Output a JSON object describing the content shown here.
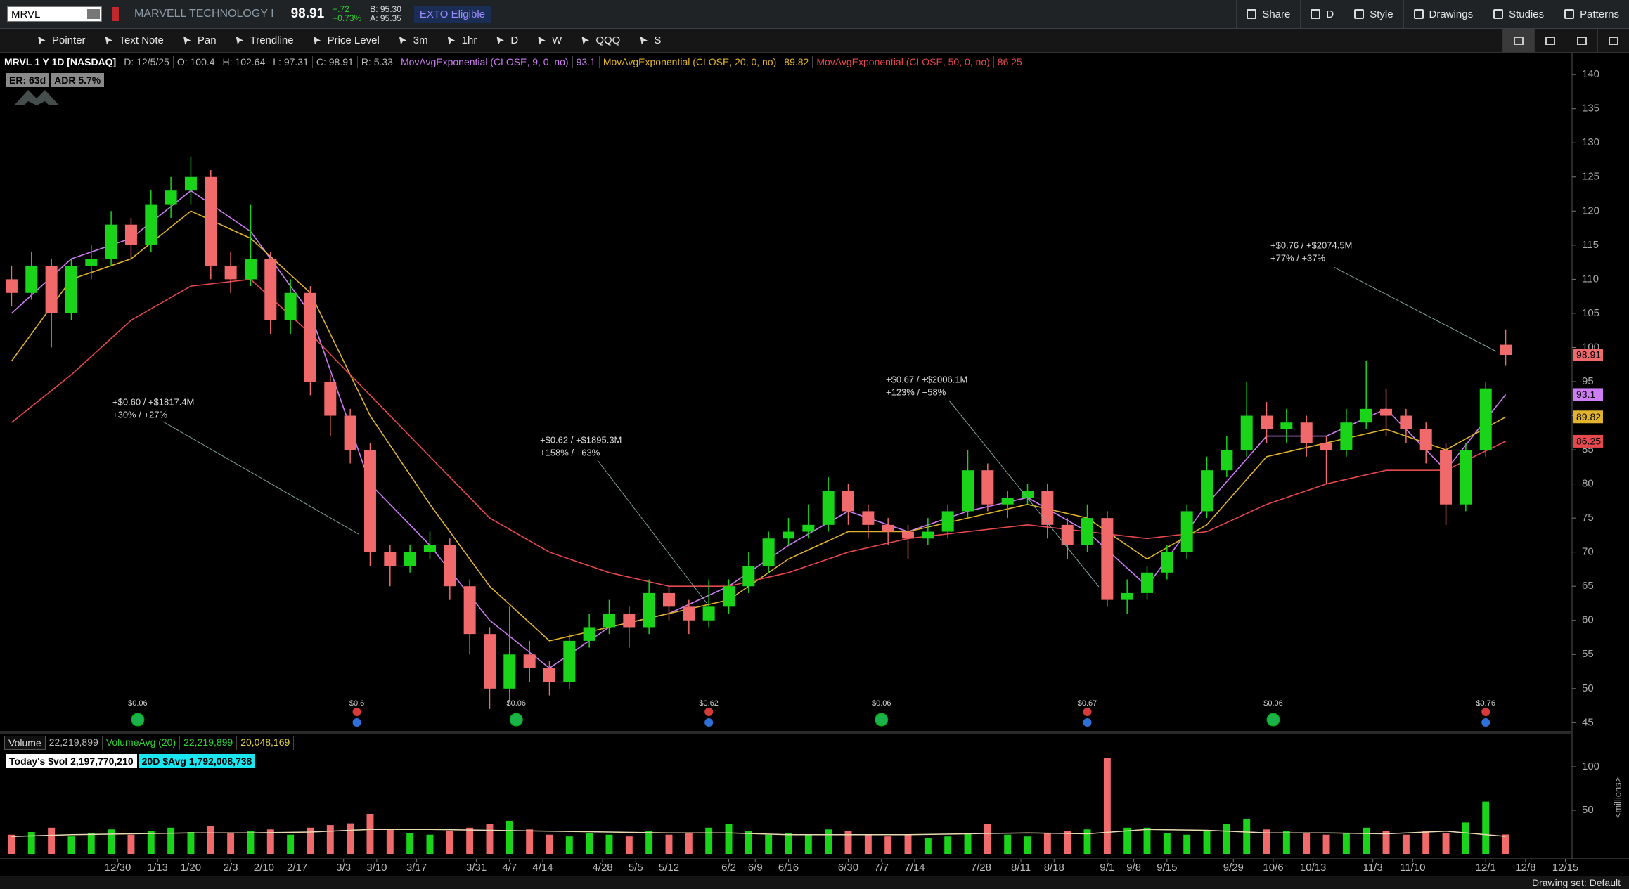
{
  "header": {
    "symbol": "MRVL",
    "company": "MARVELL TECHNOLOGY I",
    "last": 98.91,
    "change": "+.72",
    "change_pct": "+0.73%",
    "bid": "B: 95.30",
    "ask": "A: 95.35",
    "badge": "EXTO Eligible",
    "buttons": [
      "Share",
      "D",
      "Style",
      "Drawings",
      "Studies",
      "Patterns"
    ]
  },
  "toolbar": {
    "tools": [
      "Pointer",
      "Text Note",
      "Pan",
      "Trendline",
      "Price Level",
      "3m",
      "1hr",
      "D",
      "W",
      "QQQ",
      "S"
    ]
  },
  "info": {
    "title": "MRVL 1 Y 1D [NASDAQ]",
    "fields": [
      "D: 12/5/25",
      "O: 100.4",
      "H: 102.64",
      "L: 97.31",
      "C: 98.91",
      "R: 5.33"
    ],
    "badges": [
      "ER: 63d",
      "ADR 5.7%"
    ]
  },
  "chart_data": [
    {
      "type": "candlestick",
      "x": [
        0,
        3,
        6,
        9,
        12,
        15,
        18,
        21,
        24,
        27,
        30,
        33,
        36,
        39,
        42,
        45,
        48,
        51,
        54,
        57,
        60,
        63,
        66,
        69,
        72,
        75,
        78,
        81,
        84,
        87,
        90,
        93,
        96,
        99,
        102,
        105,
        108,
        111,
        114,
        117,
        120,
        123,
        126,
        129,
        132,
        135,
        138,
        141,
        144,
        147,
        150,
        153,
        156,
        159,
        162,
        165,
        168,
        171,
        174,
        177,
        180,
        183,
        186,
        189,
        192,
        195,
        198,
        201,
        204,
        207,
        210,
        213,
        216,
        219,
        222,
        225
      ],
      "open": [
        110,
        108,
        112,
        105,
        112,
        113,
        118,
        115,
        121,
        123,
        125,
        112,
        110,
        113,
        104,
        108,
        95,
        90,
        85,
        70,
        68,
        70,
        71,
        65,
        58,
        50,
        55,
        53,
        51,
        57,
        59,
        61,
        59,
        64,
        62,
        60,
        62,
        65,
        68,
        72,
        73,
        74,
        79,
        76,
        74,
        73,
        72,
        73,
        76,
        82,
        77,
        78,
        79,
        74,
        71,
        75,
        63,
        64,
        67,
        70,
        76,
        82,
        85,
        90,
        88,
        89,
        86,
        85,
        89,
        91,
        90,
        88,
        85,
        77,
        85,
        100.4
      ],
      "high": [
        112,
        114,
        113,
        113,
        115,
        120,
        119,
        123,
        125,
        128,
        126,
        114,
        121,
        114,
        110,
        109,
        96,
        91,
        86,
        71,
        71,
        73,
        72,
        66,
        59,
        62,
        57,
        54,
        58,
        61,
        63,
        62,
        66,
        65,
        63,
        66,
        66,
        70,
        73,
        75,
        77,
        81,
        80,
        77,
        75,
        74,
        75,
        77,
        85,
        83,
        79,
        80,
        80,
        75,
        77,
        76,
        66,
        68,
        71,
        77,
        84,
        87,
        95,
        92,
        91,
        90,
        87,
        91,
        98,
        94,
        91,
        89,
        86,
        86,
        95,
        102.64
      ],
      "low": [
        106,
        107,
        100,
        104,
        110,
        112,
        113,
        114,
        119,
        121,
        110,
        108,
        109,
        102,
        102,
        93,
        87,
        83,
        68,
        65,
        67,
        69,
        63,
        55,
        47,
        48,
        51,
        49,
        50,
        56,
        58,
        56,
        58,
        60,
        58,
        59,
        61,
        64,
        67,
        71,
        72,
        73,
        74,
        72,
        71,
        69,
        71,
        72,
        75,
        76,
        75,
        77,
        72,
        69,
        70,
        62,
        61,
        63,
        66,
        69,
        75,
        81,
        84,
        86,
        86,
        84,
        80,
        84,
        88,
        87,
        86,
        83,
        74,
        76,
        84,
        97.31
      ],
      "close": [
        108,
        112,
        105,
        112,
        113,
        118,
        115,
        121,
        123,
        125,
        112,
        110,
        113,
        104,
        108,
        95,
        90,
        85,
        70,
        68,
        70,
        71,
        65,
        58,
        50,
        55,
        53,
        51,
        57,
        59,
        61,
        59,
        64,
        62,
        60,
        62,
        65,
        68,
        72,
        73,
        74,
        79,
        76,
        74,
        73,
        72,
        73,
        76,
        82,
        77,
        78,
        79,
        74,
        71,
        75,
        63,
        64,
        67,
        70,
        76,
        82,
        85,
        90,
        88,
        89,
        86,
        85,
        89,
        91,
        90,
        88,
        85,
        77,
        85,
        94,
        98.91
      ],
      "up_color": "#19d419",
      "down_color": "#f0696b",
      "lines": [
        {
          "name": "MovAvgExponential (CLOSE, 9, 0, no)",
          "color": "#cf7df5",
          "x": [
            0,
            9,
            18,
            27,
            36,
            45,
            54,
            63,
            72,
            81,
            90,
            99,
            108,
            117,
            126,
            135,
            144,
            153,
            162,
            171,
            180,
            189,
            198,
            207,
            216,
            225
          ],
          "values": [
            105,
            113,
            116,
            123,
            117,
            105,
            80,
            71,
            60,
            53,
            59,
            61,
            65,
            71,
            76,
            73,
            76,
            78,
            73,
            65,
            77,
            87,
            87,
            91,
            82,
            93.1
          ]
        },
        {
          "name": "MovAvgExponential (CLOSE, 20, 0, no)",
          "color": "#e2b42c",
          "x": [
            0,
            9,
            18,
            27,
            36,
            45,
            54,
            63,
            72,
            81,
            90,
            99,
            108,
            117,
            126,
            135,
            144,
            153,
            162,
            171,
            180,
            189,
            198,
            207,
            216,
            225
          ],
          "values": [
            98,
            110,
            113,
            120,
            116,
            108,
            90,
            77,
            65,
            57,
            59,
            61,
            63,
            69,
            73,
            73,
            75,
            77,
            75,
            69,
            74,
            84,
            86,
            88,
            85,
            89.82
          ]
        },
        {
          "name": "MovAvgExponential (CLOSE, 50, 0, no)",
          "color": "#e5484d",
          "x": [
            0,
            9,
            18,
            27,
            36,
            45,
            54,
            63,
            72,
            81,
            90,
            99,
            108,
            117,
            126,
            135,
            144,
            153,
            162,
            171,
            180,
            189,
            198,
            207,
            216,
            225
          ],
          "values": [
            89,
            96,
            104,
            109,
            110,
            102,
            93,
            84,
            75,
            70,
            67,
            65,
            65,
            67,
            70,
            72,
            73,
            74,
            73,
            72,
            73,
            77,
            80,
            82,
            82,
            86.25
          ]
        }
      ],
      "annotations": [
        {
          "lines": [
            "+$0.60 / +$1817.4M",
            "+30% / +27%"
          ]
        },
        {
          "lines": [
            "+$0.62 / +$1895.3M",
            "+158% / +63%"
          ]
        },
        {
          "lines": [
            "+$0.67 / +$2006.1M",
            "+123% / +58%"
          ]
        },
        {
          "lines": [
            "+$0.76 / +$2074.5M",
            "+77% / +37%"
          ]
        }
      ],
      "events": [
        {
          "x": 19,
          "label": "$0.06",
          "kind": "dividend"
        },
        {
          "x": 52,
          "label": "$0.6",
          "kind": "earnings"
        },
        {
          "x": 76,
          "label": "$0.06",
          "kind": "dividend"
        },
        {
          "x": 105,
          "label": "$0.62",
          "kind": "earnings"
        },
        {
          "x": 131,
          "label": "$0.06",
          "kind": "dividend"
        },
        {
          "x": 162,
          "label": "$0.67",
          "kind": "earnings"
        },
        {
          "x": 190,
          "label": "$0.06",
          "kind": "dividend"
        },
        {
          "x": 222,
          "label": "$0.76",
          "kind": "earnings"
        }
      ],
      "xlim": [
        -1,
        235
      ],
      "xticks": [
        {
          "value": 16,
          "label": "12/30"
        },
        {
          "value": 22,
          "label": "1/13"
        },
        {
          "value": 27,
          "label": "1/20"
        },
        {
          "value": 33,
          "label": "2/3"
        },
        {
          "value": 38,
          "label": "2/10"
        },
        {
          "value": 43,
          "label": "2/17"
        },
        {
          "value": 50,
          "label": "3/3"
        },
        {
          "value": 55,
          "label": "3/10"
        },
        {
          "value": 61,
          "label": "3/17"
        },
        {
          "value": 70,
          "label": "3/31"
        },
        {
          "value": 75,
          "label": "4/7"
        },
        {
          "value": 80,
          "label": "4/14"
        },
        {
          "value": 89,
          "label": "4/28"
        },
        {
          "value": 94,
          "label": "5/5"
        },
        {
          "value": 99,
          "label": "5/12"
        },
        {
          "value": 108,
          "label": "6/2"
        },
        {
          "value": 112,
          "label": "6/9"
        },
        {
          "value": 117,
          "label": "6/16"
        },
        {
          "value": 126,
          "label": "6/30"
        },
        {
          "value": 131,
          "label": "7/7"
        },
        {
          "value": 136,
          "label": "7/14"
        },
        {
          "value": 146,
          "label": "7/28"
        },
        {
          "value": 152,
          "label": "8/11"
        },
        {
          "value": 157,
          "label": "8/18"
        },
        {
          "value": 165,
          "label": "9/1"
        },
        {
          "value": 169,
          "label": "9/8"
        },
        {
          "value": 174,
          "label": "9/15"
        },
        {
          "value": 184,
          "label": "9/29"
        },
        {
          "value": 190,
          "label": "10/6"
        },
        {
          "value": 196,
          "label": "10/13"
        },
        {
          "value": 205,
          "label": "11/3"
        },
        {
          "value": 211,
          "label": "11/10"
        },
        {
          "value": 222,
          "label": "12/1"
        },
        {
          "value": 228,
          "label": "12/8"
        },
        {
          "value": 234,
          "label": "12/15"
        }
      ],
      "ylim": [
        43.8,
        142.9
      ],
      "yticks": [
        45,
        50,
        55,
        60,
        65,
        70,
        75,
        80,
        85,
        90,
        95,
        100,
        105,
        110,
        115,
        120,
        125,
        130,
        135,
        140
      ]
    },
    {
      "type": "bar",
      "label": "Volume",
      "value_text": "22,219,899",
      "avg_name": "VolumeAvg (20)",
      "avg_texts": [
        "22,219,899",
        "20,048,169"
      ],
      "stats": [
        "Today's $vol 2,197,770,210",
        "20D $Avg 1,792,008,738"
      ],
      "unit": "<millions>",
      "values": [
        22,
        25,
        30,
        20,
        24,
        28,
        22,
        26,
        30,
        25,
        32,
        24,
        26,
        28,
        22,
        30,
        33,
        35,
        46,
        28,
        24,
        22,
        26,
        30,
        34,
        38,
        28,
        22,
        20,
        24,
        22,
        20,
        26,
        22,
        24,
        30,
        34,
        26,
        22,
        24,
        22,
        28,
        26,
        22,
        20,
        22,
        18,
        20,
        24,
        34,
        22,
        20,
        24,
        26,
        28,
        110,
        30,
        30,
        24,
        22,
        26,
        34,
        40,
        28,
        26,
        24,
        22,
        24,
        30,
        26,
        22,
        26,
        24,
        36,
        60,
        22.22
      ],
      "avg_line": {
        "color": "#e8d9b0",
        "x": [
          0,
          9,
          18,
          27,
          36,
          45,
          54,
          63,
          72,
          81,
          90,
          99,
          108,
          117,
          126,
          135,
          144,
          153,
          162,
          171,
          180,
          189,
          198,
          207,
          216,
          225
        ],
        "values": [
          20,
          22,
          23,
          24,
          24,
          25,
          28,
          28,
          27,
          26,
          25,
          24,
          24,
          22,
          22,
          22,
          23,
          24,
          23,
          28,
          27,
          24,
          24,
          23,
          26,
          20.05
        ]
      },
      "ylim": [
        0,
        134.7
      ],
      "yticks": [
        50,
        100
      ]
    }
  ],
  "footer": {
    "status": "Drawing set: Default"
  }
}
